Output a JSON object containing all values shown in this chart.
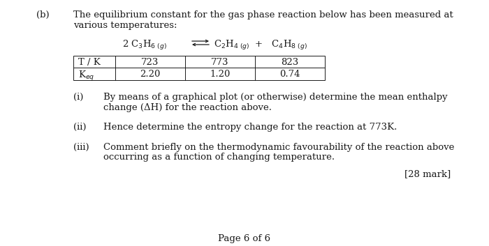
{
  "background_color": "#ffffff",
  "part_b_label": "(b)",
  "part_b_line1": "The equilibrium constant for the gas phase reaction below has been measured at",
  "part_b_line2": "various temperatures:",
  "table_headers": [
    "T / K",
    "723",
    "773",
    "823"
  ],
  "table_row2_values": [
    "2.20",
    "1.20",
    "0.74"
  ],
  "sub_i_label": "(i)",
  "sub_i_line1": "By means of a graphical plot (or otherwise) determine the mean enthalpy",
  "sub_i_line2": "change (ΔH) for the reaction above.",
  "sub_ii_label": "(ii)",
  "sub_ii_text": "Hence determine the entropy change for the reaction at 773K.",
  "sub_iii_label": "(iii)",
  "sub_iii_line1": "Comment briefly on the thermodynamic favourability of the reaction above",
  "sub_iii_line2": "occurring as a function of changing temperature.",
  "mark_text": "[28 mark]",
  "page_text": "Page 6 of 6",
  "text_color": "#1a1a1a",
  "font_size": 9.5
}
